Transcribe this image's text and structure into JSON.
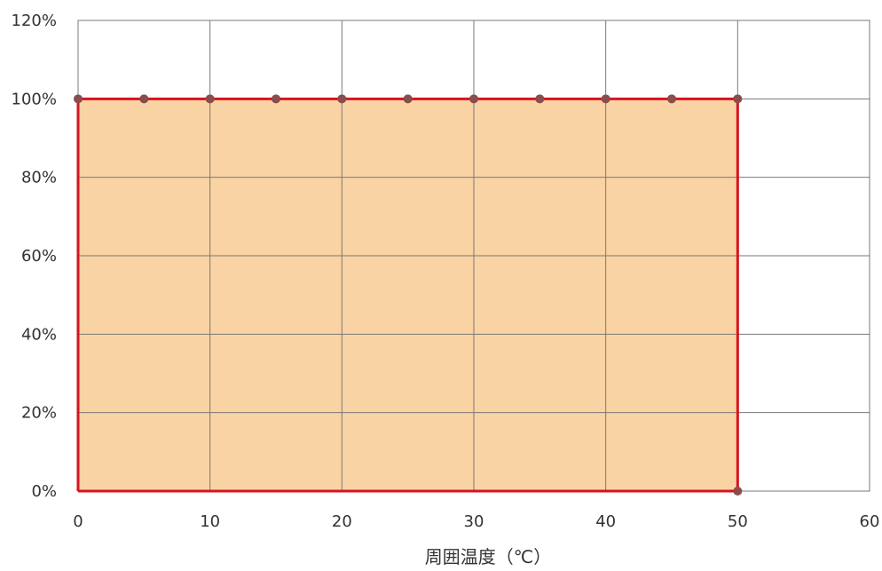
{
  "chart_data": {
    "type": "area",
    "title": "",
    "xlabel": "周囲温度（℃）",
    "ylabel": "",
    "xlim": [
      0,
      60
    ],
    "ylim": [
      0,
      120
    ],
    "grid": true,
    "x_ticks": [
      0,
      10,
      20,
      30,
      40,
      50,
      60
    ],
    "x_tick_labels": [
      "0",
      "10",
      "20",
      "30",
      "40",
      "50",
      "60"
    ],
    "y_ticks": [
      0,
      20,
      40,
      60,
      80,
      100,
      120
    ],
    "y_tick_labels": [
      "0%",
      "20%",
      "40%",
      "60%",
      "80%",
      "100%",
      "120%"
    ],
    "series": [
      {
        "x": [
          0,
          5,
          10,
          15,
          20,
          25,
          30,
          35,
          40,
          45,
          50,
          50
        ],
        "y": [
          100,
          100,
          100,
          100,
          100,
          100,
          100,
          100,
          100,
          100,
          100,
          0
        ],
        "line_color": "#d7141e",
        "fill_color": "#f9d3a3",
        "marker_color": "#8a4d4d"
      }
    ]
  }
}
